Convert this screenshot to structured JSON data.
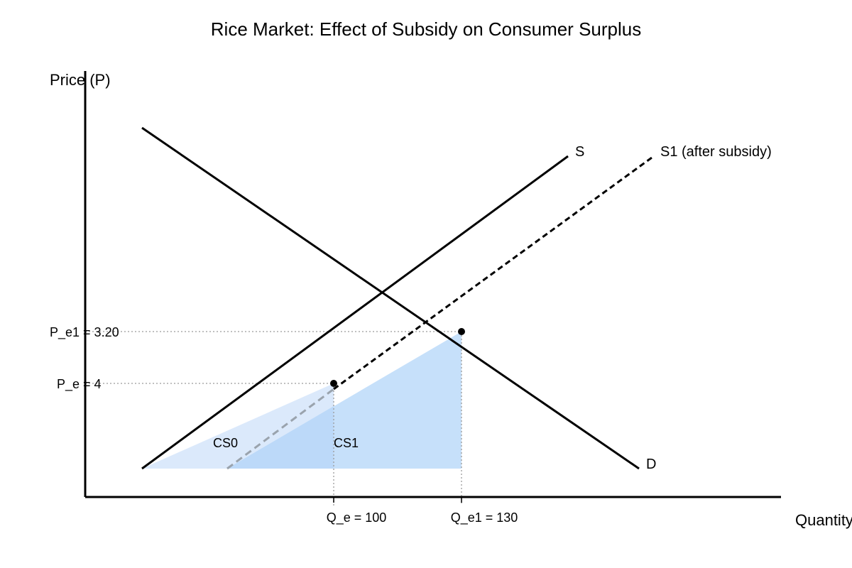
{
  "title": "Rice Market: Effect of Subsidy on Consumer Surplus",
  "axes": {
    "y_label": "Price (P)",
    "x_label": "Quantity"
  },
  "curves": {
    "supply_label": "S",
    "supply_after_label": "S1 (after subsidy)",
    "demand_label": "D"
  },
  "ticks": {
    "price_e1": "P_e1 = 3.20",
    "price_e": "P_e = 4",
    "qty_e": "Q_e = 100",
    "qty_e1": "Q_e1 = 130"
  },
  "regions": {
    "cs0_label": "CS0",
    "cs1_label": "CS1"
  },
  "colors": {
    "cs0_fill": "#dbe9fb",
    "cs1_fill": "#c6e0fa",
    "overlap_fill": "#bcd9f9"
  }
}
